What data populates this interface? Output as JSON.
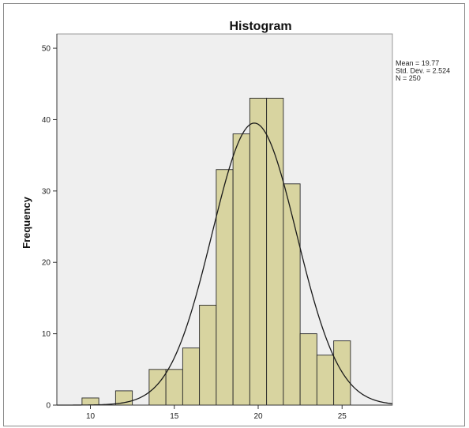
{
  "chart_data": {
    "type": "bar",
    "subtype": "histogram",
    "title": "Histogram",
    "xlabel": "",
    "ylabel": "Frequency",
    "xlim": [
      8,
      28
    ],
    "ylim": [
      0,
      52
    ],
    "x_ticks": [
      10,
      15,
      20,
      25
    ],
    "y_ticks": [
      0,
      10,
      20,
      30,
      40,
      50
    ],
    "bin_width": 1,
    "bins": [
      {
        "start": 9.5,
        "value": 1
      },
      {
        "start": 11.5,
        "value": 2
      },
      {
        "start": 13.5,
        "value": 5
      },
      {
        "start": 14.5,
        "value": 5
      },
      {
        "start": 15.5,
        "value": 8
      },
      {
        "start": 16.5,
        "value": 14
      },
      {
        "start": 17.5,
        "value": 33
      },
      {
        "start": 18.5,
        "value": 38
      },
      {
        "start": 19.5,
        "value": 43
      },
      {
        "start": 20.5,
        "value": 43
      },
      {
        "start": 21.5,
        "value": 31
      },
      {
        "start": 22.5,
        "value": 10
      },
      {
        "start": 23.5,
        "value": 7
      },
      {
        "start": 24.5,
        "value": 9
      }
    ],
    "normal_curve": {
      "mean": 19.77,
      "std_dev": 2.524,
      "n": 250
    },
    "stats_lines": [
      "Mean = 19.77",
      "Std. Dev. = 2.524",
      "N = 250"
    ],
    "colors": {
      "bar_fill": "#d8d4a0",
      "bar_stroke": "#2a2a2a",
      "plot_background": "#efefef",
      "curve": "#1a1a1a",
      "axis": "#333333"
    },
    "grid": false
  }
}
